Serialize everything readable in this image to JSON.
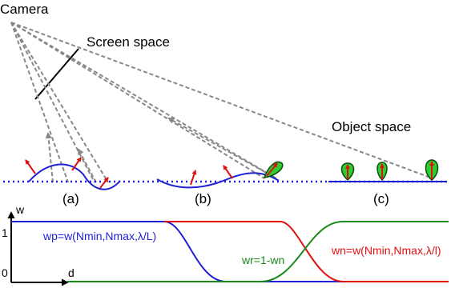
{
  "labels": {
    "camera": "Camera",
    "screen_space": "Screen space",
    "object_space": "Object space",
    "a": "(a)",
    "b": "(b)",
    "c": "(c)"
  },
  "graph": {
    "y_axis": "w",
    "x_axis": "d",
    "tick_one": "1",
    "tick_zero": "0",
    "wp_formula": "wp=w(Nmin,Nmax,λ/L)",
    "wr_formula": "wr=1-wn",
    "wn_formula": "wn=w(Nmin,Nmax,λ/l)"
  },
  "colors": {
    "wp": "#1f1fd6",
    "wn": "#e01010",
    "wr": "#1a8a1a",
    "rays": "#888888",
    "surface": "#1f1fd6",
    "normal_arrow": "#e01010",
    "lobe_fill": "#2ecc2e"
  }
}
